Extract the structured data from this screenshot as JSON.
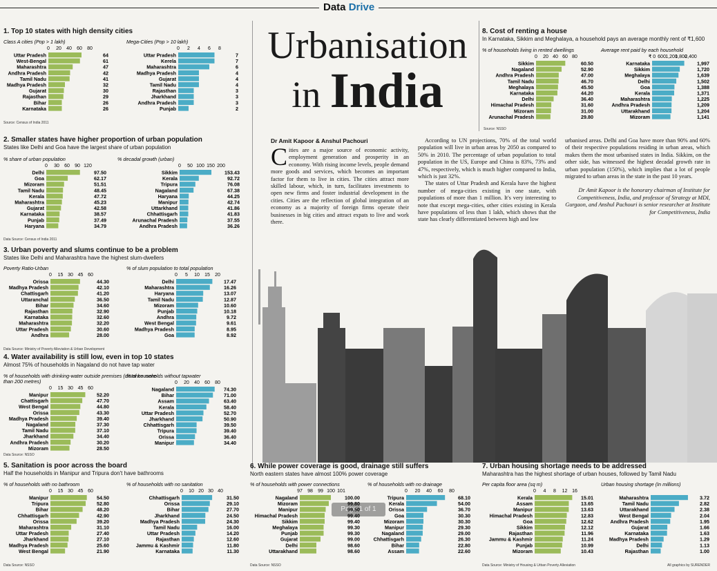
{
  "header": {
    "brand_a": "Data",
    "brand_b": "Drive"
  },
  "title": {
    "line1": "Urbanisation",
    "line2a": "in",
    "line2b": "India"
  },
  "article": {
    "byline": "Dr Amit Kapoor & Anshul Pachouri",
    "dropcap": "C",
    "col1": "ities are a major source of economic activity, employment generation and prosperity in an economy. With rising income levels, people demand more goods and services, which becomes an important factor for them to live in cities. The cities attract more skilled labour, which, in turn, facilitates investments to open new firms and foster industrial development in the cities. Cities are the reflection of global integration of an economy as a majority of foreign firms operate their businesses in big cities and attract expats to live and work there.",
    "col2a": "According to UN projections, 70% of the total world population will live in urban areas by 2050 as compared to 50% in 2010. The percentage of urban population to total population in the US, Europe and China is 83%, 73% and 47%, respectively, which is much higher compared to India, which is just 32%.",
    "col2b": "The states of Uttar Pradesh and Kerala have the highest number of mega-cities existing in one state, with populations of more than 1 million. It's very interesting to note that except mega-cities, other cities existing in Kerala have populations of less than 1 lakh, which shows that the state has clearly differentiated between high and low",
    "col3": "urbanised areas. Delhi and Goa have more than 90% and 60% of their respective populations residing in urban areas, which makes them the most urbanised states in India. Sikkim, on the other side, has witnessed the highest decadal growth rate in urban population (150%), which implies that a lot of people migrated to urban areas in the state in the past 10 years.",
    "note": "Dr Amit Kapoor is the honorary chairman of Institute for Competitiveness, India, and professor of Strategy at MDI, Gurgaon, and Anshul Pachouri is senior researcher at Institute for Competitiveness, India"
  },
  "pager": "Page 1 of 1",
  "credit": "All graphics by SURENDER",
  "sections": {
    "s1": {
      "title": "1. Top 10 states with high density cities",
      "subtitle": "",
      "source": "Source: Census of India 2011"
    },
    "s2": {
      "title": "2. Smaller states have higher proportion of urban population",
      "subtitle": "States like Delhi and Goa have the largest share of urban population",
      "source": "Data Source: Census of India 2011"
    },
    "s3": {
      "title": "3. Urban poverty and slums continue to be a problem",
      "subtitle": "States like Delhi and Maharashtra have the highest slum-dwellers",
      "source": "Data Source: Ministry of Poverty Alleviation & Urban Development"
    },
    "s4": {
      "title": "4. Water availability is still low, even in top 10 states",
      "subtitle": "Almost 75% of households in Nagaland do not have tap water",
      "source": "Data Source: NSSO"
    },
    "s5": {
      "title": "5. Sanitation is poor across the board",
      "subtitle": "Half the households in Manipur and Tripura don't have bathrooms",
      "source": "Data Source: NSSO"
    },
    "s6": {
      "title": "6. While power coverage is good, drainage still suffers",
      "subtitle": "North eastern states have almost 100% power coverage",
      "source": "Data Source: NSSO"
    },
    "s7": {
      "title": "7. Urban housing shortage needs to be addressed",
      "subtitle": "Maharashtra has the highest shortage of urban houses, followed by Tamil Nadu",
      "source": "Data Source: Ministry of Housing & Urban Poverty Alleviation"
    },
    "s8": {
      "title": "8. Cost of renting a house",
      "subtitle": "In Karnataka, Sikkim and Meghalaya, a household pays an average monthly rent of ₹1,600",
      "source": "Source: NSSO"
    }
  },
  "chart_data": [
    {
      "id": "c1a",
      "type": "bar",
      "color": "#9bbb59",
      "title": "Class A cities (Pop > 1 lakh)",
      "ticks": [
        "0",
        "20",
        "40",
        "60",
        "80"
      ],
      "xlim": [
        0,
        80
      ],
      "categories": [
        "Uttar Pradesh",
        "West-Bengal",
        "Maharashtra",
        "Andhra Pradesh",
        "Tamil Nadu",
        "Madhya Pradesh",
        "Gujarat",
        "Rajasthan",
        "Bihar",
        "Karnataka"
      ],
      "values": [
        64,
        61,
        47,
        42,
        41,
        32,
        30,
        29,
        26,
        26
      ],
      "labels": [
        "64",
        "61",
        "47",
        "42",
        "41",
        "32",
        "30",
        "29",
        "26",
        "26"
      ]
    },
    {
      "id": "c1b",
      "type": "bar",
      "color": "#4bacc6",
      "title": "Mega-Cities (Pop > 10 lakh)",
      "ticks": [
        "0",
        "2",
        "4",
        "6",
        "8"
      ],
      "xlim": [
        0,
        8
      ],
      "categories": [
        "Uttar Pradesh",
        "Kerela",
        "Maharashtra",
        "Madhya Pradesh",
        "Gujarat",
        "Tamil Nadu",
        "Rajasthan",
        "Jharkhand",
        "Andhra Pradesh",
        "Punjab"
      ],
      "values": [
        7,
        7,
        6,
        4,
        4,
        4,
        3,
        3,
        3,
        2
      ],
      "labels": [
        "7",
        "7",
        "6",
        "4",
        "4",
        "4",
        "3",
        "3",
        "3",
        "2"
      ]
    },
    {
      "id": "c2a",
      "type": "bar",
      "color": "#9bbb59",
      "title": "% share of urban population",
      "ticks": [
        "0",
        "30",
        "60",
        "90",
        "120"
      ],
      "xlim": [
        0,
        120
      ],
      "categories": [
        "Delhi",
        "Goa",
        "Mizoram",
        "Tamil Nadu",
        "Kerala",
        "Maharashtra",
        "Gujarat",
        "Karnataka",
        "Punjab",
        "Haryana"
      ],
      "values": [
        97.5,
        62.17,
        51.51,
        48.45,
        47.72,
        45.23,
        42.58,
        38.57,
        37.49,
        34.79
      ],
      "labels": [
        "97.50",
        "62.17",
        "51.51",
        "48.45",
        "47.72",
        "45.23",
        "42.58",
        "38.57",
        "37.49",
        "34.79"
      ]
    },
    {
      "id": "c2b",
      "type": "bar",
      "color": "#4bacc6",
      "title": "% decadal growth (urban)",
      "ticks": [
        "0",
        "50",
        "100",
        "150",
        "200"
      ],
      "xlim": [
        0,
        200
      ],
      "categories": [
        "Sikkim",
        "Kerala",
        "Tripura",
        "Nagaland",
        "Haryana",
        "Manipur",
        "Uttarkhand",
        "Chhattisgarh",
        "Arunachal Pradesh",
        "Andhra Pradesh"
      ],
      "values": [
        153.43,
        92.72,
        76.08,
        67.38,
        44.25,
        42.74,
        41.86,
        41.83,
        37.55,
        36.26
      ],
      "labels": [
        "153.43",
        "92.72",
        "76.08",
        "67.38",
        "44.25",
        "42.74",
        "41.86",
        "41.83",
        "37.55",
        "36.26"
      ]
    },
    {
      "id": "c3a",
      "type": "bar",
      "color": "#9bbb59",
      "title": "Poverty Ratio-Urban",
      "ticks": [
        "0",
        "15",
        "30",
        "45",
        "60"
      ],
      "xlim": [
        0,
        60
      ],
      "categories": [
        "Orissa",
        "Madhya Pradesh",
        "Chattisgarh",
        "Uttaranchal",
        "Bihar",
        "Rajasthan",
        "Karnataka",
        "Maharashtra",
        "Uttar Pradesh",
        "Andhra"
      ],
      "values": [
        44.3,
        42.1,
        41.2,
        36.5,
        34.6,
        32.9,
        32.6,
        32.2,
        30.6,
        28.0
      ],
      "labels": [
        "44.30",
        "42.10",
        "41.20",
        "36.50",
        "34.60",
        "32.90",
        "32.60",
        "32.20",
        "30.60",
        "28.00"
      ]
    },
    {
      "id": "c3b",
      "type": "bar",
      "color": "#4bacc6",
      "title": "% of slum population to total population",
      "ticks": [
        "0",
        "5",
        "10",
        "15",
        "20"
      ],
      "xlim": [
        0,
        20
      ],
      "categories": [
        "Delhi",
        "Maharashtra",
        "Haryana",
        "Tamil Nadu",
        "Mizoram",
        "Punjab",
        "Andhra",
        "West Bengal",
        "Madhya Pradesh",
        "Goa"
      ],
      "values": [
        17.47,
        16.26,
        13.07,
        12.87,
        10.6,
        10.18,
        9.72,
        9.61,
        8.95,
        8.92
      ],
      "labels": [
        "17.47",
        "16.26",
        "13.07",
        "12.87",
        "10.60",
        "10.18",
        "9.72",
        "9.61",
        "8.95",
        "8.92"
      ]
    },
    {
      "id": "c4a",
      "type": "bar",
      "color": "#9bbb59",
      "title": "% of households with drinking-water outside premises (distance more than 200 metres)",
      "ticks": [
        "0",
        "15",
        "30",
        "45",
        "60"
      ],
      "xlim": [
        0,
        60
      ],
      "categories": [
        "Manipur",
        "Chattisgarh",
        "West Bengal",
        "Orissa",
        "Madhya Pradesh",
        "Nagaland",
        "Tamil Nadu",
        "Jharkhand",
        "Andhra Pradesh",
        "Mizoram"
      ],
      "values": [
        52.2,
        47.7,
        44.8,
        43.3,
        39.4,
        37.3,
        37.1,
        34.4,
        30.2,
        28.5
      ],
      "labels": [
        "52.20",
        "47.70",
        "44.80",
        "43.30",
        "39.40",
        "37.30",
        "37.10",
        "34.40",
        "30.20",
        "28.50"
      ]
    },
    {
      "id": "c4b",
      "type": "bar",
      "color": "#4bacc6",
      "title": "% of households without tapwater",
      "ticks": [
        "0",
        "20",
        "40",
        "60",
        "80"
      ],
      "xlim": [
        0,
        80
      ],
      "categories": [
        "Nagaland",
        "Bihar",
        "Assam",
        "Kerala",
        "Uttar Pradesh",
        "Jharkhand",
        "Chhattisgarh",
        "Tripura",
        "Orissa",
        "Manipur"
      ],
      "values": [
        74.3,
        71.0,
        63.4,
        58.4,
        52.7,
        50.9,
        39.5,
        39.4,
        36.4,
        34.4
      ],
      "labels": [
        "74.30",
        "71.00",
        "63.40",
        "58.40",
        "52.70",
        "50.90",
        "39.50",
        "39.40",
        "36.40",
        "34.40"
      ]
    },
    {
      "id": "c5a",
      "type": "bar",
      "color": "#9bbb59",
      "title": "% of households with no bathroom",
      "ticks": [
        "0",
        "15",
        "30",
        "45",
        "60"
      ],
      "xlim": [
        0,
        60
      ],
      "categories": [
        "Manipur",
        "Tripura",
        "Bihar",
        "Chhattisgarh",
        "Orissa",
        "Maharashtra",
        "Uttar Pradesh",
        "Jharkhand",
        "Madhya Pradesh",
        "West Bengal"
      ],
      "values": [
        54.5,
        52.8,
        48.2,
        42.9,
        39.2,
        31.1,
        27.4,
        27.1,
        25.6,
        21.9
      ],
      "labels": [
        "54.50",
        "52.80",
        "48.20",
        "42.90",
        "39.20",
        "31.10",
        "27.40",
        "27.10",
        "25.60",
        "21.90"
      ]
    },
    {
      "id": "c5b",
      "type": "bar",
      "color": "#4bacc6",
      "title": "% of households with no sanitation",
      "ticks": [
        "0",
        "10",
        "20",
        "30",
        "40"
      ],
      "xlim": [
        0,
        40
      ],
      "categories": [
        "Chhattisgarh",
        "Orissa",
        "Bihar",
        "Jharkhand",
        "Madhya Pradesh",
        "Tamil Nadu",
        "Uttar Pradesh",
        "Rajasthan",
        "Jammu & Kashmir",
        "Karnataka"
      ],
      "values": [
        31.5,
        29.1,
        27.7,
        24.5,
        24.3,
        16.0,
        14.2,
        12.6,
        11.8,
        11.3
      ],
      "labels": [
        "31.50",
        "29.10",
        "27.70",
        "24.50",
        "24.30",
        "16.00",
        "14.20",
        "12.60",
        "11.80",
        "11.30"
      ]
    },
    {
      "id": "c6a",
      "type": "bar",
      "color": "#9bbb59",
      "title": "% of households with power connections",
      "ticks": [
        "97",
        "98",
        "99",
        "100",
        "101"
      ],
      "xlim": [
        97,
        101
      ],
      "categories": [
        "Nagaland",
        "Mizoram",
        "Manipur",
        "Himachal Pradesh",
        "Sikkim",
        "Meghalaya",
        "Punjab",
        "Gujarat",
        "Delhi",
        "Uttarakhand"
      ],
      "values": [
        100.0,
        99.8,
        99.5,
        99.4,
        99.4,
        99.3,
        99.3,
        99.0,
        98.6,
        98.6
      ],
      "labels": [
        "100.00",
        "99.80",
        "99.50",
        "99.40",
        "99.40",
        "99.30",
        "99.30",
        "99.00",
        "98.60",
        "98.60"
      ]
    },
    {
      "id": "c6b",
      "type": "bar",
      "color": "#4bacc6",
      "title": "% of households with no drainage",
      "ticks": [
        "0",
        "20",
        "40",
        "60",
        "80"
      ],
      "xlim": [
        0,
        80
      ],
      "categories": [
        "Tripura",
        "Kerala",
        "Orissa",
        "Goa",
        "Mizoram",
        "Manipur",
        "Nagaland",
        "Chhattisgarh",
        "Bihar",
        "Assam"
      ],
      "values": [
        68.1,
        54.0,
        36.7,
        30.3,
        30.3,
        29.3,
        29.0,
        26.3,
        22.8,
        22.6
      ],
      "labels": [
        "68.10",
        "54.00",
        "36.70",
        "30.30",
        "30.30",
        "29.30",
        "29.00",
        "26.30",
        "22.80",
        "22.60"
      ]
    },
    {
      "id": "c7a",
      "type": "bar",
      "color": "#9bbb59",
      "title": "Per capita floor area (sq m)",
      "ticks": [
        "0",
        "4",
        "8",
        "12",
        "16"
      ],
      "xlim": [
        0,
        16
      ],
      "categories": [
        "Kerala",
        "Assam",
        "Manipur",
        "Himachal Pradesh",
        "Goa",
        "Sikkim",
        "Rajasthan",
        "Jammu & Kashmir",
        "Punjab",
        "Mizoram"
      ],
      "values": [
        15.01,
        13.65,
        13.63,
        12.83,
        12.62,
        12.12,
        11.96,
        11.24,
        10.99,
        10.43
      ],
      "labels": [
        "15.01",
        "13.65",
        "13.63",
        "12.83",
        "12.62",
        "12.12",
        "11.96",
        "11.24",
        "10.99",
        "10.43"
      ]
    },
    {
      "id": "c7b",
      "type": "bar",
      "color": "#4bacc6",
      "title": "Urban housing shortage (In millions)",
      "ticks": [],
      "xlim": [
        0,
        4
      ],
      "categories": [
        "Maharashtra",
        "Tamil Nadu",
        "Uttarakhand",
        "West Bengal",
        "Andhra Pradesh",
        "Gujarat",
        "Karnataka",
        "Madhya Pradesh",
        "Delhi",
        "Rajasthan"
      ],
      "values": [
        3.72,
        2.82,
        2.38,
        2.04,
        1.95,
        1.66,
        1.63,
        1.29,
        1.13,
        1.0
      ],
      "labels": [
        "3.72",
        "2.82",
        "2.38",
        "2.04",
        "1.95",
        "1.66",
        "1.63",
        "1.29",
        "1.13",
        "1.00"
      ]
    },
    {
      "id": "c8a",
      "type": "bar",
      "color": "#9bbb59",
      "title": "% of households living in rented dwellings",
      "ticks": [
        "0",
        "20",
        "40",
        "60",
        "80"
      ],
      "xlim": [
        0,
        80
      ],
      "categories": [
        "Sikkim",
        "Nagaland",
        "Andhra Pradesh",
        "Tamil Nadu",
        "Meghalaya",
        "Karnataka",
        "Delhi",
        "Himachal Pradesh",
        "Mizoram",
        "Arunachal Pradesh"
      ],
      "values": [
        60.5,
        52.9,
        47.0,
        46.7,
        45.5,
        44.2,
        36.4,
        31.6,
        31.0,
        29.8
      ],
      "labels": [
        "60.50",
        "52.90",
        "47.00",
        "46.70",
        "45.50",
        "44.20",
        "36.40",
        "31.60",
        "31.00",
        "29.80"
      ]
    },
    {
      "id": "c8b",
      "type": "bar",
      "color": "#4bacc6",
      "title": "Average rent paid by each household",
      "ticks": [
        "₹ 0",
        "600",
        "1,200",
        "1,800",
        "2,400"
      ],
      "xlim": [
        0,
        2400
      ],
      "categories": [
        "Karnataka",
        "Sikkim",
        "Meghalaya",
        "Delhi",
        "Goa",
        "Kerala",
        "Maharashtra",
        "Andhra Pradesh",
        "Uttarakhand",
        "Mizoram"
      ],
      "values": [
        1997,
        1720,
        1639,
        1502,
        1388,
        1371,
        1225,
        1209,
        1204,
        1141
      ],
      "labels": [
        "1,997",
        "1,720",
        "1,639",
        "1,502",
        "1,388",
        "1,371",
        "1,225",
        "1,209",
        "1,204",
        "1,141"
      ]
    }
  ]
}
